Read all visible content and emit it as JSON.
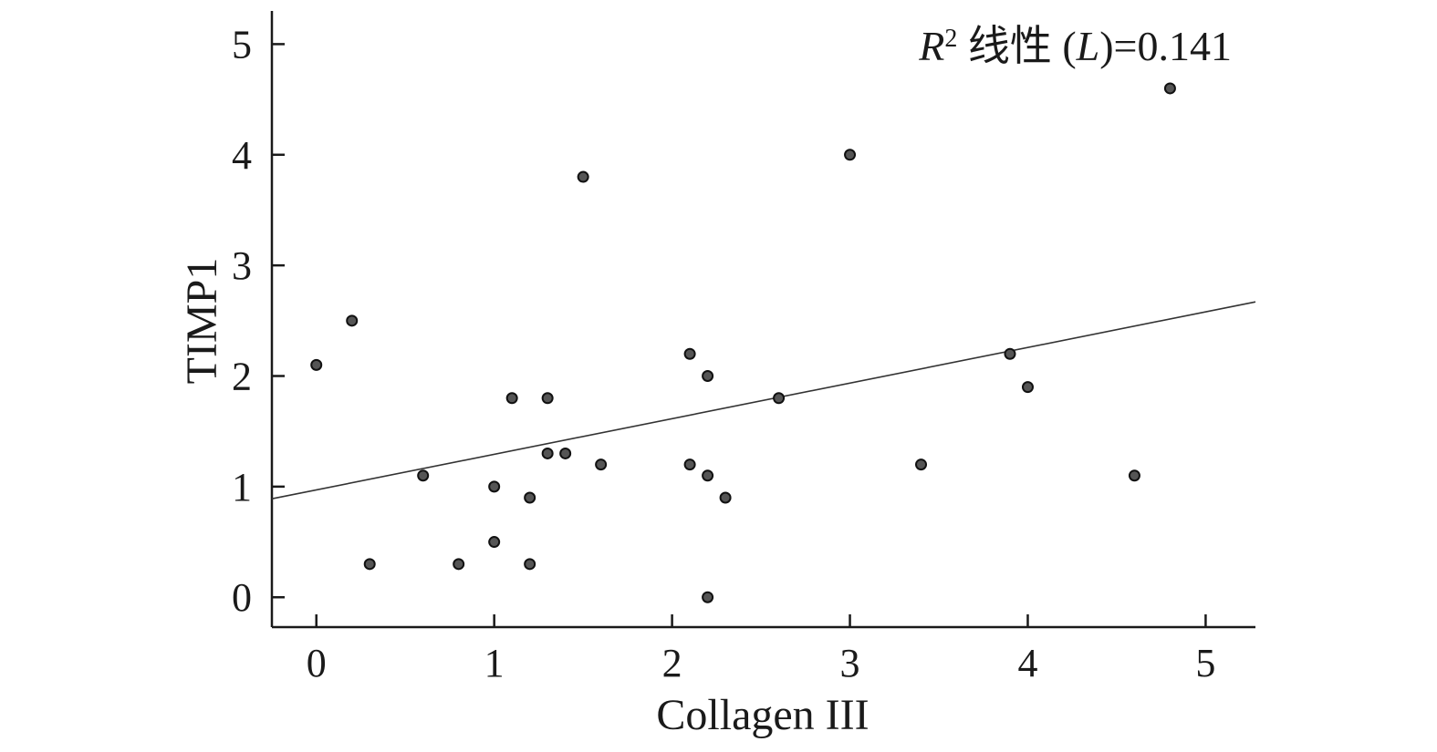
{
  "chart_data": {
    "type": "scatter",
    "xlabel": "Collagen III",
    "ylabel": "TIMP1",
    "xlim": [
      -0.25,
      5.28
    ],
    "ylim": [
      -0.27,
      5.3
    ],
    "x_ticks": [
      0,
      1,
      2,
      3,
      4,
      5
    ],
    "y_ticks": [
      0,
      1,
      2,
      3,
      4,
      5
    ],
    "grid": false,
    "annotation": {
      "var": "R",
      "sup": "2",
      "text": " 线性 (",
      "L": "L",
      "value": ")=0.141"
    },
    "series": [
      {
        "points": [
          {
            "x": 0.0,
            "y": 2.1
          },
          {
            "x": 0.2,
            "y": 2.5
          },
          {
            "x": 0.3,
            "y": 0.3
          },
          {
            "x": 0.6,
            "y": 1.1
          },
          {
            "x": 0.8,
            "y": 0.3
          },
          {
            "x": 1.0,
            "y": 1.0
          },
          {
            "x": 1.0,
            "y": 0.5
          },
          {
            "x": 1.1,
            "y": 1.8
          },
          {
            "x": 1.2,
            "y": 0.9
          },
          {
            "x": 1.2,
            "y": 0.3
          },
          {
            "x": 1.3,
            "y": 1.8
          },
          {
            "x": 1.3,
            "y": 1.3
          },
          {
            "x": 1.4,
            "y": 1.3
          },
          {
            "x": 1.5,
            "y": 3.8
          },
          {
            "x": 1.6,
            "y": 1.2
          },
          {
            "x": 2.1,
            "y": 2.2
          },
          {
            "x": 2.1,
            "y": 1.2
          },
          {
            "x": 2.2,
            "y": 2.0
          },
          {
            "x": 2.2,
            "y": 1.1
          },
          {
            "x": 2.2,
            "y": 0.0
          },
          {
            "x": 2.3,
            "y": 0.9
          },
          {
            "x": 2.6,
            "y": 1.8
          },
          {
            "x": 3.0,
            "y": 4.0
          },
          {
            "x": 3.4,
            "y": 1.2
          },
          {
            "x": 3.9,
            "y": 2.2
          },
          {
            "x": 4.0,
            "y": 1.9
          },
          {
            "x": 4.6,
            "y": 1.1
          },
          {
            "x": 4.8,
            "y": 4.6
          }
        ]
      }
    ],
    "fit_line": {
      "x": [
        -0.25,
        5.28
      ],
      "y": [
        0.89,
        2.67
      ]
    }
  }
}
